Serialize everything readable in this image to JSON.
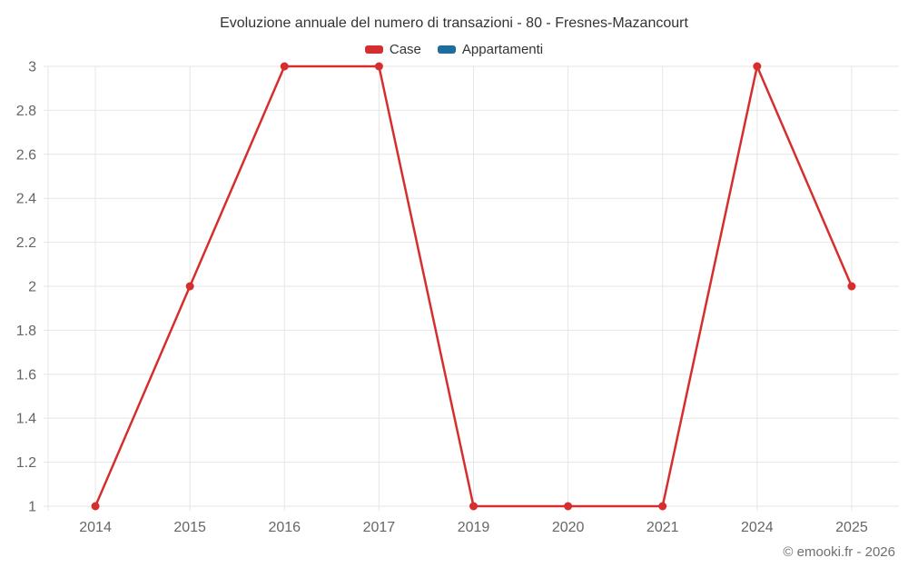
{
  "title": "Evoluzione annuale del numero di transazioni - 80 - Fresnes-Mazancourt",
  "credit": "© emooki.fr - 2026",
  "legend": {
    "items": [
      {
        "label": "Case",
        "color": "#d62e2e"
      },
      {
        "label": "Appartamenti",
        "color": "#1c6e9e"
      }
    ]
  },
  "colors": {
    "case_series": "#d62e2e",
    "appartamenti_series": "#1c6e9e",
    "grid": "#e6e6e6",
    "axis_text": "#666666",
    "title_text": "#333333",
    "credit_text": "#6e6f71"
  },
  "chart_data": {
    "type": "line",
    "title": "Evoluzione annuale del numero di transazioni - 80 - Fresnes-Mazancourt",
    "categories": [
      "2014",
      "2015",
      "2016",
      "2017",
      "2019",
      "2020",
      "2021",
      "2024",
      "2025"
    ],
    "series": [
      {
        "name": "Case",
        "color": "#d62e2e",
        "values": [
          1,
          2,
          3,
          3,
          1,
          1,
          1,
          3,
          2
        ]
      },
      {
        "name": "Appartamenti",
        "color": "#1c6e9e",
        "values": []
      }
    ],
    "xlabel": "",
    "ylabel": "",
    "ylim": [
      1,
      3
    ],
    "yticks": [
      1,
      1.2,
      1.4,
      1.6,
      1.8,
      2,
      2.2,
      2.4,
      2.6,
      2.8,
      3
    ],
    "grid": true,
    "legend_position": "top"
  }
}
